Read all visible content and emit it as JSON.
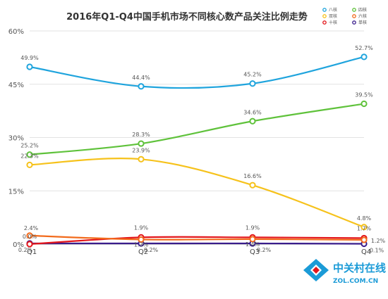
{
  "chart_data": {
    "type": "line",
    "title": "2016年Q1-Q4中国手机市场不同核心数产品关注比例走势",
    "categories": [
      "Q1",
      "Q2",
      "Q3",
      "Q4"
    ],
    "ylim": [
      0,
      60
    ],
    "yticks": [
      "0%",
      "15%",
      "30%",
      "45%",
      "60%"
    ],
    "ytick_values": [
      0,
      15,
      30,
      45,
      60
    ],
    "grid": true,
    "legend_position": "top-right",
    "series": [
      {
        "name": "八核",
        "color": "#1fa4dd",
        "values": [
          49.9,
          44.4,
          45.2,
          52.7
        ],
        "labels": [
          "49.9%",
          "44.4%",
          "45.2%",
          "52.7%"
        ]
      },
      {
        "name": "四核",
        "color": "#5fc23b",
        "values": [
          25.2,
          28.3,
          34.6,
          39.5
        ],
        "labels": [
          "25.2%",
          "28.3%",
          "34.6%",
          "39.5%"
        ]
      },
      {
        "name": "双核",
        "color": "#f6c21b",
        "values": [
          22.3,
          23.9,
          16.6,
          4.8
        ],
        "labels": [
          "22.3%",
          "23.9%",
          "16.6%",
          "4.8%"
        ]
      },
      {
        "name": "六核",
        "color": "#f26a1b",
        "values": [
          2.4,
          1.3,
          1.4,
          1.2
        ],
        "labels": [
          "2.4%",
          "1.3%",
          "1.4%",
          "1.2%"
        ]
      },
      {
        "name": "十核",
        "color": "#e3161b",
        "values": [
          0.0,
          1.9,
          1.9,
          1.7
        ],
        "labels": [
          "0.0%",
          "1.9%",
          "1.9%",
          "1.7%"
        ]
      },
      {
        "name": "单核",
        "color": "#3a1d8c",
        "values": [
          0.2,
          0.2,
          0.2,
          0.1
        ],
        "labels": [
          "0.2%",
          "0.2%",
          "0.2%",
          "0.1%"
        ]
      }
    ]
  },
  "watermark": {
    "cn": "中关村在线",
    "en": "ZOL.COM.CN"
  }
}
